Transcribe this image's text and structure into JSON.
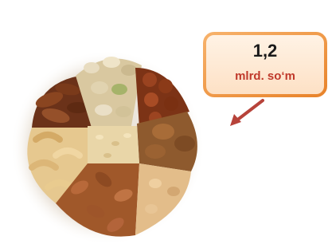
{
  "callout": {
    "amount": "1,2",
    "unit": "mlrd. so‘m"
  }
}
